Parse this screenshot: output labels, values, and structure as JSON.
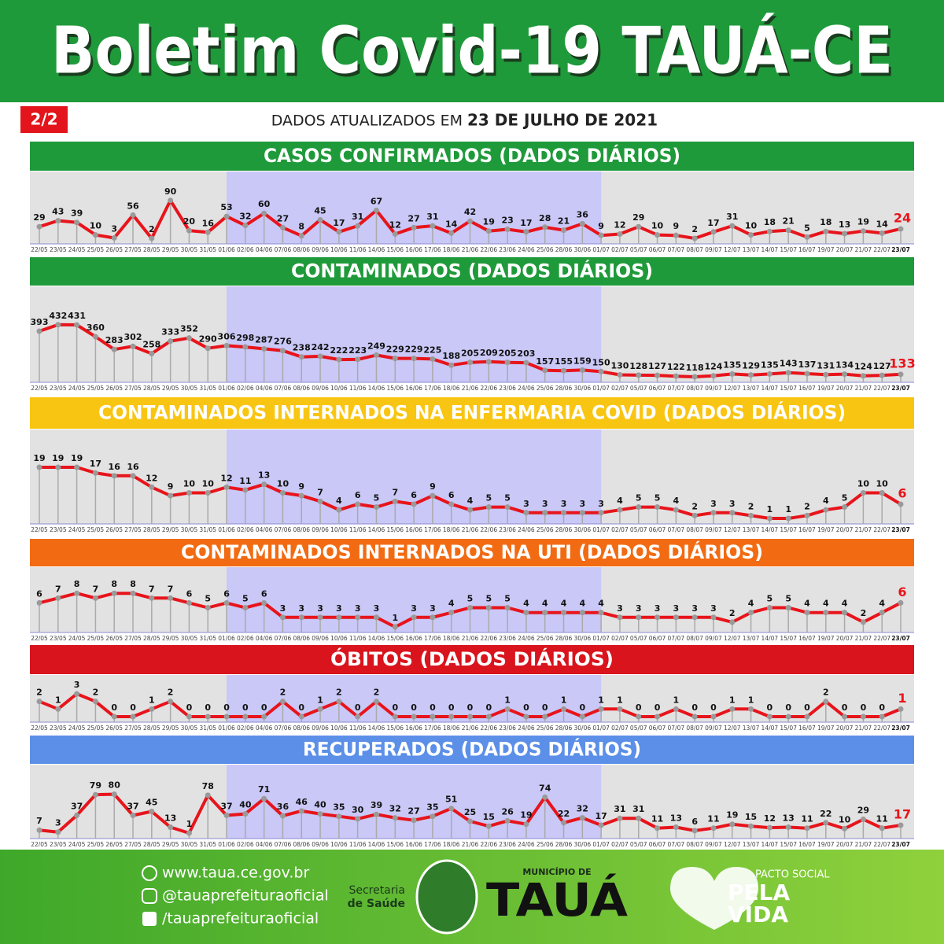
{
  "header": {
    "title": "Boletim Covid-19 TAUÁ-CE",
    "page": "2/2",
    "updated_prefix": "DADOS ATUALIZADOS EM",
    "updated_date": "23 DE JULHO DE 2021"
  },
  "chart_data": [
    {
      "type": "line",
      "title": "CASOS CONFIRMADOS  (DADOS DIÁRIOS)",
      "color": "#e8141b",
      "categories": [
        "22/05",
        "23/05",
        "24/05",
        "25/05",
        "26/05",
        "27/05",
        "28/05",
        "29/05",
        "30/05",
        "31/05",
        "01/06",
        "02/06",
        "04/06",
        "07/06",
        "08/06",
        "09/06",
        "10/06",
        "11/06",
        "14/06",
        "15/06",
        "16/06",
        "17/06",
        "18/06",
        "21/06",
        "22/06",
        "23/06",
        "24/06",
        "25/06",
        "28/06",
        "30/06",
        "01/07",
        "02/07",
        "05/07",
        "06/07",
        "07/07",
        "08/07",
        "09/07",
        "12/07",
        "13/07",
        "14/07",
        "15/07",
        "16/07",
        "19/07",
        "20/07",
        "21/07",
        "22/07",
        "23/07"
      ],
      "values": [
        29,
        43,
        39,
        10,
        3,
        56,
        2,
        90,
        20,
        16,
        53,
        32,
        60,
        27,
        8,
        45,
        17,
        31,
        67,
        12,
        27,
        31,
        14,
        42,
        19,
        23,
        17,
        28,
        21,
        36,
        9,
        12,
        29,
        10,
        9,
        2,
        17,
        31,
        10,
        18,
        21,
        5,
        18,
        13,
        19,
        14,
        24
      ]
    },
    {
      "type": "line",
      "title": "CONTAMINADOS  (DADOS DIÁRIOS)",
      "color": "#e8141b",
      "categories": [
        "22/05",
        "23/05",
        "24/05",
        "25/05",
        "26/05",
        "27/05",
        "28/05",
        "29/05",
        "30/05",
        "31/05",
        "01/06",
        "02/06",
        "04/06",
        "07/06",
        "08/06",
        "09/06",
        "10/06",
        "11/06",
        "14/06",
        "15/06",
        "16/06",
        "17/06",
        "18/06",
        "21/06",
        "22/06",
        "23/06",
        "24/06",
        "25/06",
        "28/06",
        "30/06",
        "01/07",
        "02/07",
        "05/07",
        "06/07",
        "07/07",
        "08/07",
        "09/07",
        "12/07",
        "13/07",
        "14/07",
        "15/07",
        "16/07",
        "19/07",
        "20/07",
        "21/07",
        "22/07",
        "23/07"
      ],
      "values": [
        393,
        432,
        431,
        360,
        283,
        302,
        258,
        333,
        352,
        290,
        306,
        298,
        287,
        276,
        238,
        242,
        222,
        223,
        249,
        229,
        229,
        225,
        188,
        205,
        209,
        205,
        203,
        157,
        155,
        159,
        150,
        130,
        128,
        127,
        122,
        118,
        124,
        135,
        129,
        135,
        143,
        137,
        131,
        134,
        124,
        127,
        133
      ]
    },
    {
      "type": "line",
      "title": "CONTAMINADOS INTERNADOS NA ENFERMARIA COVID  (DADOS DIÁRIOS)",
      "color": "#e8141b",
      "categories": [
        "22/05",
        "23/05",
        "24/05",
        "25/05",
        "26/05",
        "27/05",
        "28/05",
        "29/05",
        "30/05",
        "31/05",
        "01/06",
        "02/06",
        "04/06",
        "07/06",
        "08/06",
        "09/06",
        "10/06",
        "11/06",
        "14/06",
        "15/06",
        "16/06",
        "17/06",
        "18/06",
        "21/06",
        "22/06",
        "23/06",
        "24/06",
        "25/06",
        "28/06",
        "30/06",
        "01/07",
        "02/07",
        "05/07",
        "06/07",
        "07/07",
        "08/07",
        "09/07",
        "12/07",
        "13/07",
        "14/07",
        "15/07",
        "16/07",
        "19/07",
        "20/07",
        "21/07",
        "22/07",
        "23/07"
      ],
      "values": [
        19,
        19,
        19,
        17,
        16,
        16,
        12,
        9,
        10,
        10,
        12,
        11,
        13,
        10,
        9,
        7,
        4,
        6,
        5,
        7,
        6,
        9,
        6,
        4,
        5,
        5,
        3,
        3,
        3,
        3,
        3,
        4,
        5,
        5,
        4,
        2,
        3,
        3,
        2,
        1,
        1,
        2,
        4,
        5,
        10,
        10,
        6
      ]
    },
    {
      "type": "line",
      "title": "CONTAMINADOS INTERNADOS NA UTI  (DADOS DIÁRIOS)",
      "color": "#e8141b",
      "categories": [
        "22/05",
        "23/05",
        "24/05",
        "25/05",
        "26/05",
        "27/05",
        "28/05",
        "29/05",
        "30/05",
        "31/05",
        "01/06",
        "02/06",
        "04/06",
        "07/06",
        "08/06",
        "09/06",
        "10/06",
        "11/06",
        "14/06",
        "15/06",
        "16/06",
        "17/06",
        "18/06",
        "21/06",
        "22/06",
        "23/06",
        "24/06",
        "25/06",
        "28/06",
        "30/06",
        "01/07",
        "02/07",
        "05/07",
        "06/07",
        "07/07",
        "08/07",
        "09/07",
        "12/07",
        "13/07",
        "14/07",
        "15/07",
        "16/07",
        "19/07",
        "20/07",
        "21/07",
        "22/07",
        "23/07"
      ],
      "values": [
        6,
        7,
        8,
        7,
        8,
        8,
        7,
        7,
        6,
        5,
        6,
        5,
        6,
        3,
        3,
        3,
        3,
        3,
        3,
        1,
        3,
        3,
        4,
        5,
        5,
        5,
        4,
        4,
        4,
        4,
        4,
        3,
        3,
        3,
        3,
        3,
        3,
        2,
        4,
        5,
        5,
        4,
        4,
        4,
        2,
        4,
        6
      ]
    },
    {
      "type": "line",
      "title": "ÓBITOS  (DADOS DIÁRIOS)",
      "color": "#e8141b",
      "categories": [
        "22/05",
        "23/05",
        "24/05",
        "25/05",
        "26/05",
        "27/05",
        "28/05",
        "29/05",
        "30/05",
        "31/05",
        "01/06",
        "02/06",
        "04/06",
        "07/06",
        "08/06",
        "09/06",
        "10/06",
        "11/06",
        "14/06",
        "15/06",
        "16/06",
        "17/06",
        "18/06",
        "21/06",
        "22/06",
        "23/06",
        "24/06",
        "25/06",
        "28/06",
        "30/06",
        "01/07",
        "02/07",
        "05/07",
        "06/07",
        "07/07",
        "08/07",
        "09/07",
        "12/07",
        "13/07",
        "14/07",
        "15/07",
        "16/07",
        "19/07",
        "20/07",
        "21/07",
        "22/07",
        "23/07"
      ],
      "values": [
        2,
        1,
        3,
        2,
        0,
        0,
        1,
        2,
        0,
        0,
        0,
        0,
        0,
        2,
        0,
        1,
        2,
        0,
        2,
        0,
        0,
        0,
        0,
        0,
        0,
        1,
        0,
        0,
        1,
        0,
        1,
        1,
        0,
        0,
        1,
        0,
        0,
        1,
        1,
        0,
        0,
        0,
        2,
        0,
        0,
        0,
        1
      ]
    },
    {
      "type": "line",
      "title": "RECUPERADOS (DADOS DIÁRIOS)",
      "color": "#e8141b",
      "categories": [
        "22/05",
        "23/05",
        "24/05",
        "25/05",
        "26/05",
        "27/05",
        "28/05",
        "29/05",
        "30/05",
        "31/05",
        "01/06",
        "02/06",
        "04/06",
        "07/06",
        "08/06",
        "09/06",
        "10/06",
        "11/06",
        "14/06",
        "15/06",
        "16/06",
        "17/06",
        "18/06",
        "21/06",
        "22/06",
        "23/06",
        "24/06",
        "25/06",
        "28/06",
        "30/06",
        "01/07",
        "02/07",
        "05/07",
        "06/07",
        "07/07",
        "08/07",
        "09/07",
        "12/07",
        "13/07",
        "14/07",
        "15/07",
        "16/07",
        "19/07",
        "20/07",
        "21/07",
        "22/07",
        "23/07"
      ],
      "values": [
        7,
        3,
        37,
        79,
        80,
        37,
        45,
        13,
        1,
        78,
        37,
        40,
        71,
        36,
        46,
        40,
        35,
        30,
        39,
        32,
        27,
        35,
        51,
        25,
        15,
        26,
        19,
        74,
        22,
        32,
        17,
        31,
        31,
        11,
        13,
        6,
        11,
        19,
        15,
        12,
        13,
        11,
        22,
        10,
        29,
        11,
        17
      ]
    }
  ],
  "footer": {
    "website": "www.taua.ce.gov.br",
    "instagram": "@tauaprefeituraoficial",
    "facebook": "/tauaprefeituraoficial",
    "secretaria_1": "Secretaria",
    "secretaria_2": "de Saúde",
    "municipio": "MUNICÍPIO DE",
    "city": "TAUÁ",
    "pacto": "PACTO SOCIAL",
    "pela": "PELA",
    "vida": "VIDA"
  }
}
